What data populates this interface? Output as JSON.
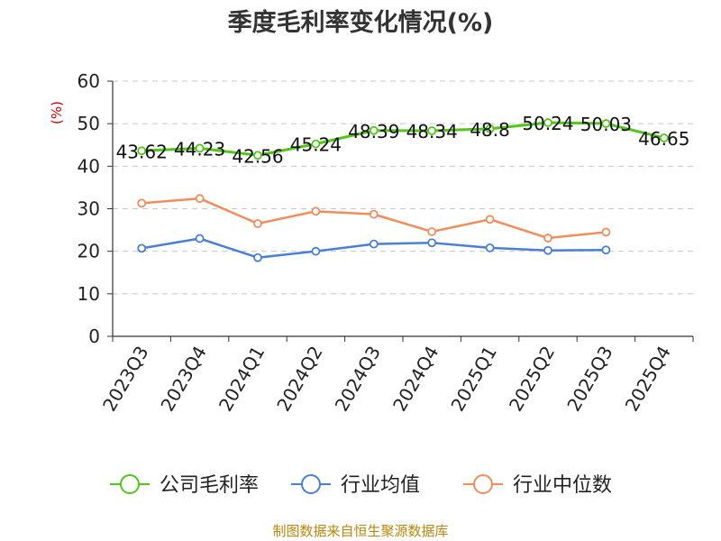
{
  "chart_data": {
    "type": "line",
    "title": "季度毛利率变化情况(%)",
    "ylabel": "(%)",
    "xlabel": "",
    "ylim": [
      0,
      60
    ],
    "yticks": [
      0,
      10,
      20,
      30,
      40,
      50,
      60
    ],
    "grid": true,
    "legend_position": "bottom",
    "categories": [
      "2023Q3",
      "2023Q4",
      "2024Q1",
      "2024Q2",
      "2024Q3",
      "2024Q4",
      "2025Q1",
      "2025Q2",
      "2025Q3",
      "2025Q4"
    ],
    "series": [
      {
        "name": "公司毛利率",
        "color": "#52c41a",
        "values": [
          43.62,
          44.23,
          42.56,
          45.24,
          48.39,
          48.34,
          48.8,
          50.24,
          50.03,
          46.65
        ],
        "labels": [
          "43.62",
          "44.23",
          "42.56",
          "45.24",
          "48.39",
          "48.34",
          "48.8",
          "50.24",
          "50.03",
          "46.65"
        ]
      },
      {
        "name": "行业均值",
        "color": "#4a7fd8",
        "values": [
          20.7,
          23.0,
          18.5,
          20.0,
          21.7,
          22.0,
          20.8,
          20.2,
          20.3,
          null
        ]
      },
      {
        "name": "行业中位数",
        "color": "#f28c5b",
        "values": [
          31.3,
          32.4,
          26.5,
          29.4,
          28.7,
          24.6,
          27.5,
          23.1,
          24.5,
          null
        ]
      }
    ],
    "source": "制图数据来自恒生聚源数据库"
  }
}
